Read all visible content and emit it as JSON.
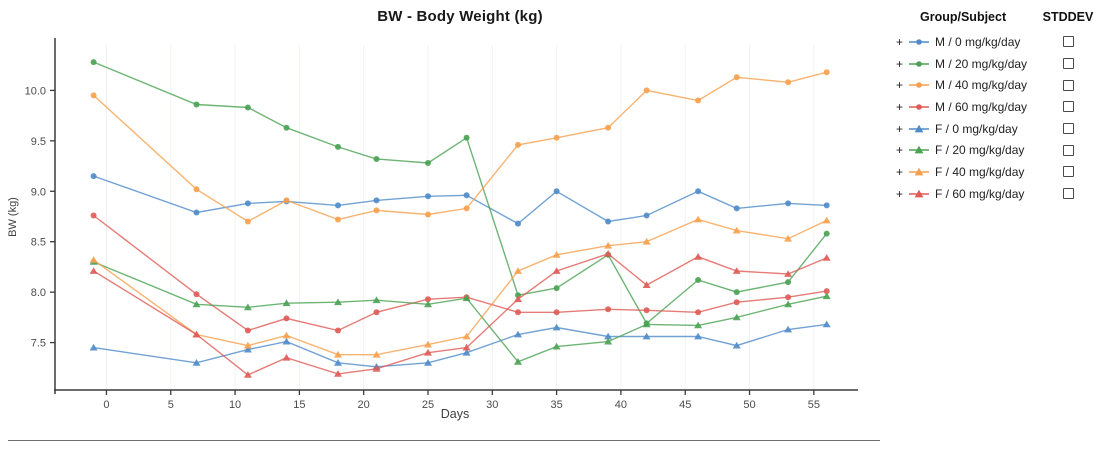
{
  "chart_data": {
    "type": "line",
    "title": "BW - Body Weight (kg)",
    "xlabel": "Days",
    "ylabel": "BW (kg)",
    "x": [
      -1,
      7,
      11,
      14,
      18,
      21,
      25,
      28,
      32,
      35,
      39,
      42,
      46,
      49,
      53,
      56
    ],
    "xlim": [
      -4.0,
      58.2
    ],
    "ylim": [
      7.03,
      10.45
    ],
    "xticks": [
      0,
      5,
      10,
      15,
      20,
      25,
      30,
      35,
      40,
      45,
      50,
      55
    ],
    "yticks": [
      7.5,
      8.0,
      8.5,
      9.0,
      9.5,
      10.0
    ],
    "grid": "faint-vertical",
    "legend_position": "right",
    "series": [
      {
        "id": "m0",
        "name": "M / 0 mg/kg/day",
        "marker": "circle",
        "color": "#4f8bc9",
        "stddev_checked": false,
        "values": [
          9.15,
          8.79,
          8.88,
          8.9,
          8.86,
          8.91,
          8.95,
          8.96,
          8.68,
          9.0,
          8.7,
          8.76,
          9.0,
          8.83,
          8.88,
          8.86
        ]
      },
      {
        "id": "m20",
        "name": "M / 20 mg/kg/day",
        "marker": "circle",
        "color": "#4aa253",
        "stddev_checked": false,
        "values": [
          10.28,
          9.86,
          9.83,
          9.63,
          9.44,
          9.32,
          9.28,
          9.53,
          7.97,
          8.04,
          8.37,
          7.69,
          8.12,
          8.0,
          8.1,
          8.58
        ]
      },
      {
        "id": "m40",
        "name": "M / 40 mg/kg/day",
        "marker": "circle",
        "color": "#f6a04d",
        "stddev_checked": false,
        "values": [
          9.95,
          9.02,
          8.7,
          8.91,
          8.72,
          8.81,
          8.77,
          8.83,
          9.46,
          9.53,
          9.63,
          10.0,
          9.9,
          10.13,
          10.08,
          10.18
        ]
      },
      {
        "id": "m60",
        "name": "M / 60 mg/kg/day",
        "marker": "circle",
        "color": "#df5b56",
        "stddev_checked": false,
        "values": [
          8.76,
          7.98,
          7.62,
          7.74,
          7.62,
          7.8,
          7.93,
          7.95,
          7.8,
          7.8,
          7.83,
          7.82,
          7.8,
          7.9,
          7.95,
          8.01
        ]
      },
      {
        "id": "f0",
        "name": "F / 0 mg/kg/day",
        "marker": "triangle",
        "color": "#4f8bc9",
        "stddev_checked": false,
        "values": [
          7.45,
          7.3,
          7.43,
          7.51,
          7.3,
          7.26,
          7.3,
          7.4,
          7.58,
          7.65,
          7.56,
          7.56,
          7.56,
          7.47,
          7.63,
          7.68
        ]
      },
      {
        "id": "f20",
        "name": "F / 20 mg/kg/day",
        "marker": "triangle",
        "color": "#4aa253",
        "stddev_checked": false,
        "values": [
          8.3,
          7.88,
          7.85,
          7.89,
          7.9,
          7.92,
          7.88,
          7.94,
          7.31,
          7.46,
          7.51,
          7.68,
          7.67,
          7.75,
          7.88,
          7.96
        ]
      },
      {
        "id": "f40",
        "name": "F / 40 mg/kg/day",
        "marker": "triangle",
        "color": "#f6a04d",
        "stddev_checked": false,
        "values": [
          8.32,
          7.58,
          7.47,
          7.57,
          7.38,
          7.38,
          7.48,
          7.56,
          8.21,
          8.37,
          8.46,
          8.5,
          8.72,
          8.61,
          8.53,
          8.71
        ]
      },
      {
        "id": "f60",
        "name": "F / 60 mg/kg/day",
        "marker": "triangle",
        "color": "#df5b56",
        "stddev_checked": false,
        "values": [
          8.21,
          7.58,
          7.18,
          7.35,
          7.19,
          7.24,
          7.4,
          7.45,
          7.93,
          8.21,
          8.38,
          8.07,
          8.35,
          8.21,
          8.18,
          8.34
        ]
      }
    ]
  },
  "legend": {
    "header": {
      "group": "Group/Subject",
      "stddev": "STDDEV"
    },
    "expand_symbol": "+"
  }
}
